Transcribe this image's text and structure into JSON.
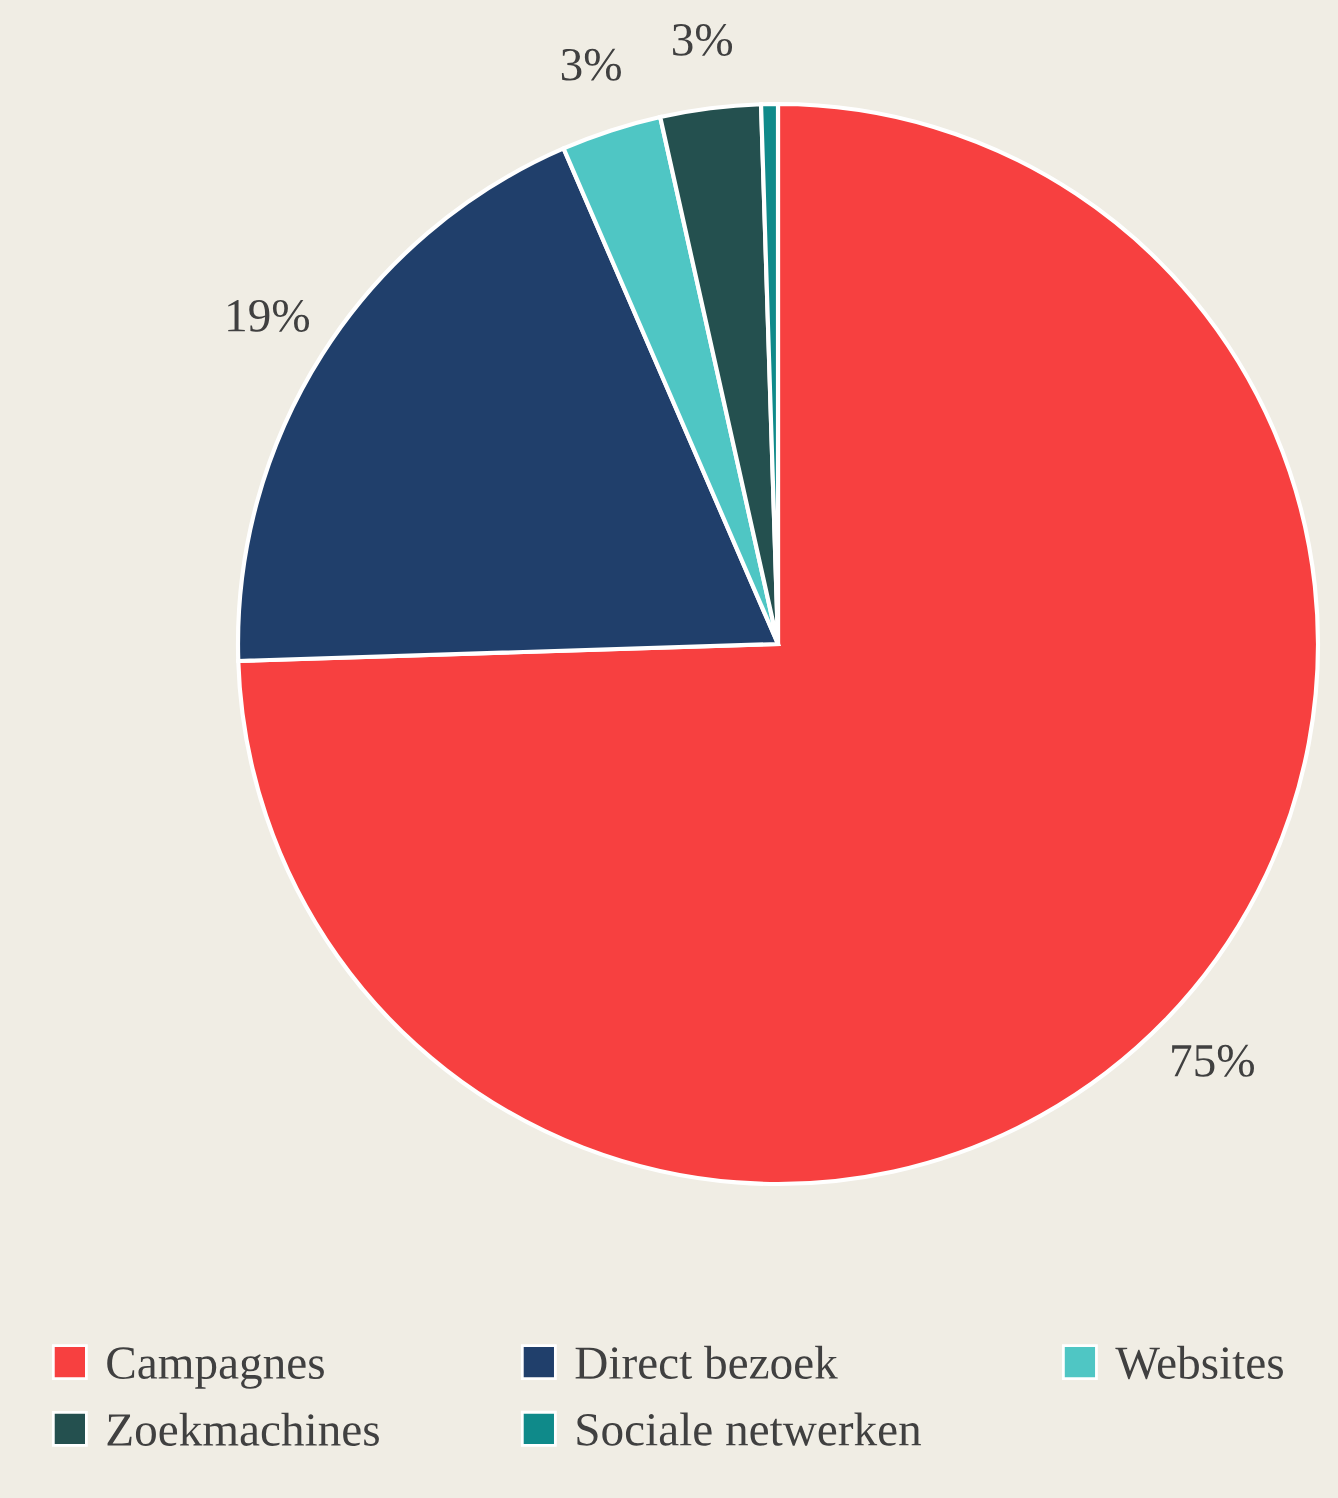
{
  "chart_data": {
    "type": "pie",
    "categories": [
      "Campagnes",
      "Direct bezoek",
      "Websites",
      "Zoekmachines",
      "Sociale netwerken"
    ],
    "values": [
      74.5,
      19,
      3,
      3,
      0.5
    ],
    "value_labels": [
      "75%",
      "19%",
      "3%",
      "3%",
      null
    ],
    "colors": [
      "#f74040",
      "#203f6b",
      "#4fc6c4",
      "#24504f",
      "#0f8a8a"
    ],
    "legend": "bottom"
  }
}
